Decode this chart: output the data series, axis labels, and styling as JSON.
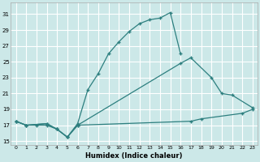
{
  "xlabel": "Humidex (Indice chaleur)",
  "bg_color": "#cce8e8",
  "line_color": "#2d7f7f",
  "grid_color": "#ffffff",
  "xlim": [
    -0.5,
    23.5
  ],
  "ylim": [
    14.5,
    32.5
  ],
  "yticks": [
    15,
    17,
    19,
    21,
    23,
    25,
    27,
    29,
    31
  ],
  "xticks": [
    0,
    1,
    2,
    3,
    4,
    5,
    6,
    7,
    8,
    9,
    10,
    11,
    12,
    13,
    14,
    15,
    16,
    17,
    18,
    19,
    20,
    21,
    22,
    23
  ],
  "xtick_labels": [
    "0",
    "1",
    "2",
    "3",
    "4",
    "5",
    "6",
    "7",
    "8",
    "9",
    "10",
    "11",
    "12",
    "13",
    "14",
    "15",
    "16",
    "17",
    "18",
    "19",
    "20",
    "21",
    "22",
    "23"
  ],
  "s1_x": [
    0,
    1,
    2,
    3,
    4,
    5,
    6,
    7,
    8,
    9,
    10,
    11,
    12,
    13,
    14,
    15,
    16
  ],
  "s1_y": [
    17.5,
    17.0,
    17.0,
    17.0,
    16.5,
    15.5,
    17.2,
    21.5,
    23.5,
    26.0,
    27.5,
    28.8,
    29.8,
    30.3,
    30.5,
    31.2,
    26.0
  ],
  "s2_x": [
    0,
    1,
    3,
    4,
    5,
    6,
    16,
    17,
    19,
    20,
    21,
    23
  ],
  "s2_y": [
    17.5,
    17.0,
    17.2,
    16.5,
    15.5,
    17.0,
    24.8,
    25.5,
    23.0,
    21.0,
    20.8,
    19.2
  ],
  "s3_x": [
    0,
    1,
    3,
    4,
    5,
    6,
    17,
    18,
    22,
    23
  ],
  "s3_y": [
    17.5,
    17.0,
    17.2,
    16.5,
    15.5,
    17.0,
    17.5,
    17.8,
    18.5,
    19.0
  ]
}
